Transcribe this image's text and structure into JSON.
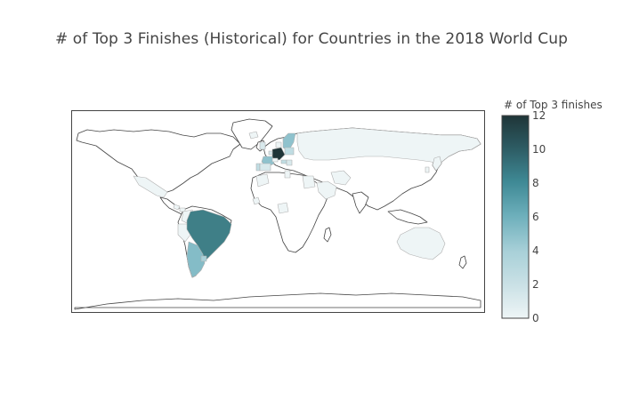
{
  "title": "# of Top 3 Finishes (Historical) for Countries in the 2018 World Cup",
  "chart_data": {
    "type": "choropleth",
    "title": "# of Top 3 Finishes (Historical) for Countries in the 2018 World Cup",
    "projection": "equirectangular",
    "colorbar": {
      "title": "# of Top 3 finishes",
      "range": [
        0,
        12
      ],
      "ticks": [
        0,
        2,
        4,
        6,
        8,
        10,
        12
      ],
      "colorscale": [
        "#eef5f6",
        "#c9e0e5",
        "#8ec1cc",
        "#56a0ad",
        "#3d7c86",
        "#2b575e",
        "#1f3538"
      ]
    },
    "countries": [
      {
        "name": "Germany",
        "value": 12
      },
      {
        "name": "Brazil",
        "value": 9
      },
      {
        "name": "Argentina",
        "value": 5
      },
      {
        "name": "Sweden",
        "value": 4
      },
      {
        "name": "France",
        "value": 4
      },
      {
        "name": "Uruguay",
        "value": 3
      },
      {
        "name": "Croatia",
        "value": 2
      },
      {
        "name": "Poland",
        "value": 2
      },
      {
        "name": "Portugal",
        "value": 2
      },
      {
        "name": "Russia",
        "value": 1
      },
      {
        "name": "England",
        "value": 1
      },
      {
        "name": "Belgium",
        "value": 1
      },
      {
        "name": "Spain",
        "value": 1
      },
      {
        "name": "Serbia",
        "value": 1
      },
      {
        "name": "Denmark",
        "value": 0
      },
      {
        "name": "Switzerland",
        "value": 0
      },
      {
        "name": "Mexico",
        "value": 0
      },
      {
        "name": "Costa Rica",
        "value": 0
      },
      {
        "name": "Panama",
        "value": 0
      },
      {
        "name": "Colombia",
        "value": 0
      },
      {
        "name": "Peru",
        "value": 0
      },
      {
        "name": "Iceland",
        "value": 0
      },
      {
        "name": "Egypt",
        "value": 0
      },
      {
        "name": "Tunisia",
        "value": 0
      },
      {
        "name": "Morocco",
        "value": 0
      },
      {
        "name": "Nigeria",
        "value": 0
      },
      {
        "name": "Senegal",
        "value": 0
      },
      {
        "name": "Saudi Arabia",
        "value": 0
      },
      {
        "name": "Iran",
        "value": 0
      },
      {
        "name": "Japan",
        "value": 0
      },
      {
        "name": "South Korea",
        "value": 0
      },
      {
        "name": "Australia",
        "value": 0
      }
    ]
  }
}
